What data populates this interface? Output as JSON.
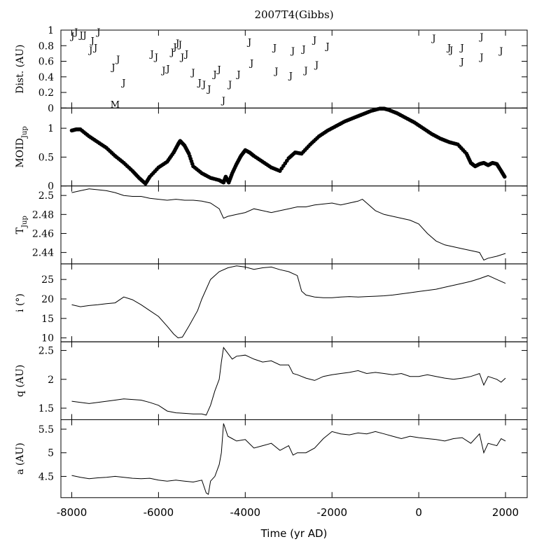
{
  "chart_data": {
    "type": "line",
    "title": "2007T4(Gibbs)",
    "xlabel": "Time (yr AD)",
    "xlim": [
      -8250,
      2500
    ],
    "xticks": [
      -8000,
      -6000,
      -4000,
      -2000,
      0,
      2000
    ],
    "xtick_labels": [
      "-8000",
      "-6000",
      "-4000",
      "-2000",
      "0",
      "2000"
    ],
    "panels": [
      {
        "id": "dist",
        "ylabel": "Dist. (AU)",
        "ylim": [
          0,
          1
        ],
        "yticks": [
          0,
          0.2,
          0.4,
          0.6,
          0.8,
          1
        ],
        "ytick_labels": [
          "0",
          "0.2",
          "0.4",
          "0.6",
          "0.8",
          "1"
        ],
        "style": "markers",
        "series": [
          {
            "name": "J",
            "points": [
              [
                -7980,
                0.93
              ],
              [
                -7900,
                0.98
              ],
              [
                -7780,
                0.94
              ],
              [
                -7700,
                0.94
              ],
              [
                -7560,
                0.75
              ],
              [
                -7520,
                0.87
              ],
              [
                -7450,
                0.78
              ],
              [
                -7380,
                0.98
              ],
              [
                -7040,
                0.53
              ],
              [
                -6930,
                0.63
              ],
              [
                -6800,
                0.33
              ],
              [
                -6150,
                0.7
              ],
              [
                -6050,
                0.66
              ],
              [
                -5880,
                0.49
              ],
              [
                -5780,
                0.51
              ],
              [
                -5680,
                0.72
              ],
              [
                -5620,
                0.79
              ],
              [
                -5560,
                0.84
              ],
              [
                -5500,
                0.82
              ],
              [
                -5450,
                0.66
              ],
              [
                -5350,
                0.7
              ],
              [
                -5200,
                0.46
              ],
              [
                -5050,
                0.33
              ],
              [
                -4950,
                0.31
              ],
              [
                -4830,
                0.25
              ],
              [
                -4700,
                0.44
              ],
              [
                -4600,
                0.5
              ],
              [
                -4500,
                0.1
              ],
              [
                -4350,
                0.31
              ],
              [
                -4150,
                0.44
              ],
              [
                -3900,
                0.85
              ],
              [
                -3850,
                0.58
              ],
              [
                -3320,
                0.78
              ],
              [
                -3280,
                0.48
              ],
              [
                -2950,
                0.42
              ],
              [
                -2900,
                0.74
              ],
              [
                -2650,
                0.76
              ],
              [
                -2600,
                0.49
              ],
              [
                -2400,
                0.88
              ],
              [
                -2350,
                0.56
              ],
              [
                -2100,
                0.8
              ],
              [
                350,
                0.9
              ],
              [
                700,
                0.78
              ],
              [
                750,
                0.75
              ],
              [
                1000,
                0.78
              ],
              [
                1000,
                0.6
              ],
              [
                1450,
                0.92
              ],
              [
                1450,
                0.66
              ],
              [
                1900,
                0.74
              ]
            ]
          },
          {
            "name": "M",
            "points": [
              [
                -7000,
                0.05
              ]
            ]
          }
        ]
      },
      {
        "id": "moid",
        "ylabel": "MOID",
        "ylabel_sub": "Jup",
        "ylim": [
          0,
          1.35
        ],
        "yticks": [
          0,
          0.5,
          1
        ],
        "ytick_labels": [
          "0",
          "0.5",
          "1"
        ],
        "style": "dots",
        "x": [
          -8000,
          -7900,
          -7800,
          -7600,
          -7400,
          -7200,
          -7000,
          -6800,
          -6600,
          -6450,
          -6300,
          -6200,
          -6000,
          -5800,
          -5650,
          -5550,
          -5500,
          -5400,
          -5300,
          -5200,
          -5000,
          -4800,
          -4600,
          -4500,
          -4450,
          -4380,
          -4300,
          -4200,
          -4100,
          -4000,
          -3900,
          -3800,
          -3600,
          -3400,
          -3200,
          -3000,
          -2850,
          -2700,
          -2500,
          -2300,
          -2100,
          -1900,
          -1700,
          -1500,
          -1300,
          -1100,
          -900,
          -800,
          -700,
          -500,
          -300,
          -100,
          100,
          300,
          500,
          700,
          900,
          1100,
          1200,
          1300,
          1400,
          1500,
          1600,
          1700,
          1800,
          1900,
          1980
        ],
        "y": [
          0.96,
          0.98,
          0.98,
          0.86,
          0.76,
          0.66,
          0.52,
          0.4,
          0.26,
          0.14,
          0.04,
          0.16,
          0.32,
          0.42,
          0.58,
          0.72,
          0.78,
          0.7,
          0.56,
          0.34,
          0.22,
          0.14,
          0.1,
          0.06,
          0.16,
          0.06,
          0.22,
          0.38,
          0.52,
          0.62,
          0.58,
          0.52,
          0.42,
          0.32,
          0.26,
          0.48,
          0.58,
          0.56,
          0.72,
          0.86,
          0.96,
          1.04,
          1.12,
          1.18,
          1.24,
          1.3,
          1.34,
          1.34,
          1.32,
          1.26,
          1.18,
          1.1,
          1.0,
          0.9,
          0.82,
          0.76,
          0.72,
          0.56,
          0.4,
          0.34,
          0.38,
          0.4,
          0.36,
          0.4,
          0.38,
          0.26,
          0.16
        ]
      },
      {
        "id": "tjup",
        "ylabel": "T",
        "ylabel_sub": "Jup",
        "ylim": [
          2.428,
          2.51
        ],
        "yticks": [
          2.44,
          2.46,
          2.48,
          2.5
        ],
        "ytick_labels": [
          "2.44",
          "2.46",
          "2.48",
          "2.5"
        ],
        "style": "line",
        "x": [
          -8000,
          -7800,
          -7600,
          -7400,
          -7200,
          -7000,
          -6800,
          -6600,
          -6400,
          -6200,
          -6000,
          -5800,
          -5600,
          -5400,
          -5200,
          -5000,
          -4800,
          -4600,
          -4500,
          -4400,
          -4200,
          -4000,
          -3800,
          -3600,
          -3400,
          -3200,
          -3000,
          -2800,
          -2600,
          -2400,
          -2200,
          -2000,
          -1800,
          -1600,
          -1400,
          -1300,
          -1200,
          -1000,
          -800,
          -600,
          -400,
          -200,
          0,
          200,
          400,
          600,
          800,
          1000,
          1200,
          1400,
          1500,
          1600,
          1800,
          2000
        ],
        "y": [
          2.503,
          2.505,
          2.507,
          2.506,
          2.505,
          2.503,
          2.5,
          2.499,
          2.499,
          2.497,
          2.496,
          2.495,
          2.496,
          2.495,
          2.495,
          2.494,
          2.492,
          2.486,
          2.476,
          2.478,
          2.48,
          2.482,
          2.486,
          2.484,
          2.482,
          2.484,
          2.486,
          2.488,
          2.488,
          2.49,
          2.491,
          2.492,
          2.49,
          2.492,
          2.494,
          2.496,
          2.492,
          2.484,
          2.48,
          2.478,
          2.476,
          2.474,
          2.47,
          2.46,
          2.452,
          2.448,
          2.446,
          2.444,
          2.442,
          2.44,
          2.432,
          2.434,
          2.436,
          2.439
        ]
      },
      {
        "id": "incl",
        "ylabel": "i (°)",
        "ylim": [
          9,
          29
        ],
        "yticks": [
          10,
          15,
          20,
          25
        ],
        "ytick_labels": [
          "10",
          "15",
          "20",
          "25"
        ],
        "style": "line",
        "x": [
          -8000,
          -7800,
          -7600,
          -7400,
          -7200,
          -7000,
          -6800,
          -6600,
          -6400,
          -6200,
          -6000,
          -5800,
          -5650,
          -5550,
          -5450,
          -5300,
          -5100,
          -5000,
          -4800,
          -4600,
          -4400,
          -4200,
          -4000,
          -3800,
          -3600,
          -3400,
          -3200,
          -3000,
          -2800,
          -2700,
          -2600,
          -2400,
          -2200,
          -2000,
          -1800,
          -1600,
          -1400,
          -1200,
          -1000,
          -800,
          -600,
          -400,
          -200,
          0,
          200,
          400,
          600,
          800,
          1000,
          1200,
          1400,
          1600,
          1800,
          2000
        ],
        "y": [
          18.5,
          18.0,
          18.3,
          18.5,
          18.8,
          19.0,
          20.5,
          19.8,
          18.5,
          17.0,
          15.5,
          13.0,
          11.0,
          10.0,
          10.2,
          13.0,
          17.0,
          20.0,
          25.0,
          27.0,
          28.0,
          28.5,
          28.2,
          27.6,
          28.0,
          28.2,
          27.5,
          27.0,
          26.0,
          22.0,
          21.0,
          20.5,
          20.3,
          20.3,
          20.5,
          20.6,
          20.5,
          20.6,
          20.7,
          20.8,
          21.0,
          21.3,
          21.6,
          21.9,
          22.2,
          22.5,
          23.0,
          23.5,
          24.0,
          24.5,
          25.2,
          26.0,
          25.0,
          24.0
        ]
      },
      {
        "id": "q",
        "ylabel": "q (AU)",
        "ylim": [
          1.3,
          2.65
        ],
        "yticks": [
          1.5,
          2,
          2.5
        ],
        "ytick_labels": [
          "1.5",
          "2",
          "2.5"
        ],
        "style": "line",
        "x": [
          -8000,
          -7800,
          -7600,
          -7400,
          -7200,
          -7000,
          -6800,
          -6600,
          -6400,
          -6200,
          -6000,
          -5800,
          -5600,
          -5400,
          -5200,
          -5000,
          -4900,
          -4800,
          -4700,
          -4600,
          -4550,
          -4500,
          -4400,
          -4300,
          -4200,
          -4000,
          -3800,
          -3600,
          -3400,
          -3200,
          -3000,
          -2900,
          -2800,
          -2600,
          -2400,
          -2200,
          -2000,
          -1800,
          -1600,
          -1400,
          -1200,
          -1000,
          -800,
          -600,
          -400,
          -200,
          0,
          200,
          400,
          600,
          800,
          1000,
          1200,
          1400,
          1500,
          1600,
          1800,
          1900,
          2000
        ],
        "y": [
          1.62,
          1.6,
          1.58,
          1.6,
          1.62,
          1.64,
          1.66,
          1.65,
          1.64,
          1.6,
          1.55,
          1.45,
          1.42,
          1.41,
          1.4,
          1.4,
          1.38,
          1.55,
          1.8,
          2.0,
          2.3,
          2.55,
          2.45,
          2.35,
          2.4,
          2.42,
          2.35,
          2.3,
          2.32,
          2.25,
          2.25,
          2.1,
          2.08,
          2.02,
          1.98,
          2.05,
          2.08,
          2.1,
          2.12,
          2.15,
          2.1,
          2.12,
          2.1,
          2.08,
          2.1,
          2.05,
          2.05,
          2.08,
          2.05,
          2.02,
          2.0,
          2.02,
          2.05,
          2.1,
          1.9,
          2.05,
          2.0,
          1.95,
          2.02
        ]
      },
      {
        "id": "a",
        "ylabel": "a (AU)",
        "ylim": [
          4.05,
          5.7
        ],
        "yticks": [
          4.5,
          5,
          5.5
        ],
        "ytick_labels": [
          "4.5",
          "5",
          "5.5"
        ],
        "style": "line",
        "x": [
          -8000,
          -7800,
          -7600,
          -7400,
          -7200,
          -7000,
          -6800,
          -6600,
          -6400,
          -6200,
          -6000,
          -5800,
          -5600,
          -5400,
          -5200,
          -5000,
          -4900,
          -4850,
          -4800,
          -4700,
          -4600,
          -4550,
          -4500,
          -4400,
          -4300,
          -4200,
          -4000,
          -3800,
          -3600,
          -3400,
          -3200,
          -3000,
          -2900,
          -2800,
          -2600,
          -2400,
          -2200,
          -2000,
          -1800,
          -1600,
          -1400,
          -1200,
          -1000,
          -800,
          -600,
          -400,
          -200,
          0,
          200,
          400,
          600,
          800,
          1000,
          1200,
          1400,
          1500,
          1600,
          1800,
          1900,
          2000
        ],
        "y": [
          4.52,
          4.48,
          4.45,
          4.47,
          4.48,
          4.5,
          4.48,
          4.46,
          4.45,
          4.46,
          4.42,
          4.4,
          4.42,
          4.4,
          4.38,
          4.42,
          4.15,
          4.12,
          4.4,
          4.5,
          4.75,
          5.0,
          5.62,
          5.35,
          5.3,
          5.25,
          5.28,
          5.1,
          5.15,
          5.2,
          5.05,
          5.15,
          4.95,
          5.0,
          5.0,
          5.1,
          5.3,
          5.45,
          5.4,
          5.38,
          5.42,
          5.4,
          5.45,
          5.4,
          5.35,
          5.3,
          5.35,
          5.32,
          5.3,
          5.28,
          5.25,
          5.3,
          5.32,
          5.2,
          5.4,
          5.0,
          5.2,
          5.15,
          5.3,
          5.25
        ]
      }
    ]
  }
}
